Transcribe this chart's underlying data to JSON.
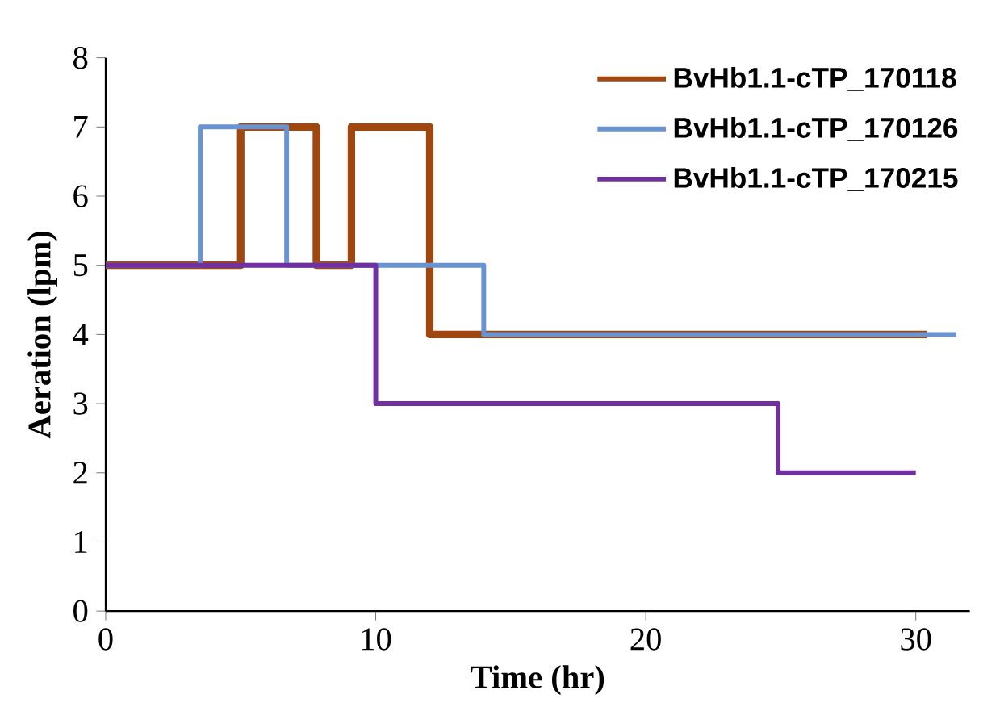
{
  "chart_data": {
    "type": "step",
    "xlabel": "Time (hr)",
    "ylabel": "Aeration (lpm)",
    "xlim": [
      0,
      32
    ],
    "ylim": [
      0,
      8
    ],
    "xticks": [
      0,
      10,
      20,
      30
    ],
    "yticks": [
      0,
      1,
      2,
      3,
      4,
      5,
      6,
      7,
      8
    ],
    "grid": false,
    "legend": "top right",
    "marker": "none",
    "line_style": "solid",
    "series": [
      {
        "name": "BvHb1.1-cTP_170118",
        "color": "#a0460f",
        "x": [
          0,
          5.0,
          7.8,
          9.1,
          12.0,
          30.4
        ],
        "values": [
          5,
          7,
          5,
          7,
          4,
          4
        ]
      },
      {
        "name": "BvHb1.1-cTP_170126",
        "color": "#6a93d1",
        "x": [
          0,
          3.5,
          6.7,
          14.0,
          31.5
        ],
        "values": [
          5,
          7,
          5,
          4,
          4
        ]
      },
      {
        "name": "BvHb1.1-cTP_170215",
        "color": "#7030a0",
        "x": [
          0,
          10.0,
          24.9,
          30.0
        ],
        "values": [
          5,
          3,
          2,
          2
        ]
      }
    ]
  }
}
